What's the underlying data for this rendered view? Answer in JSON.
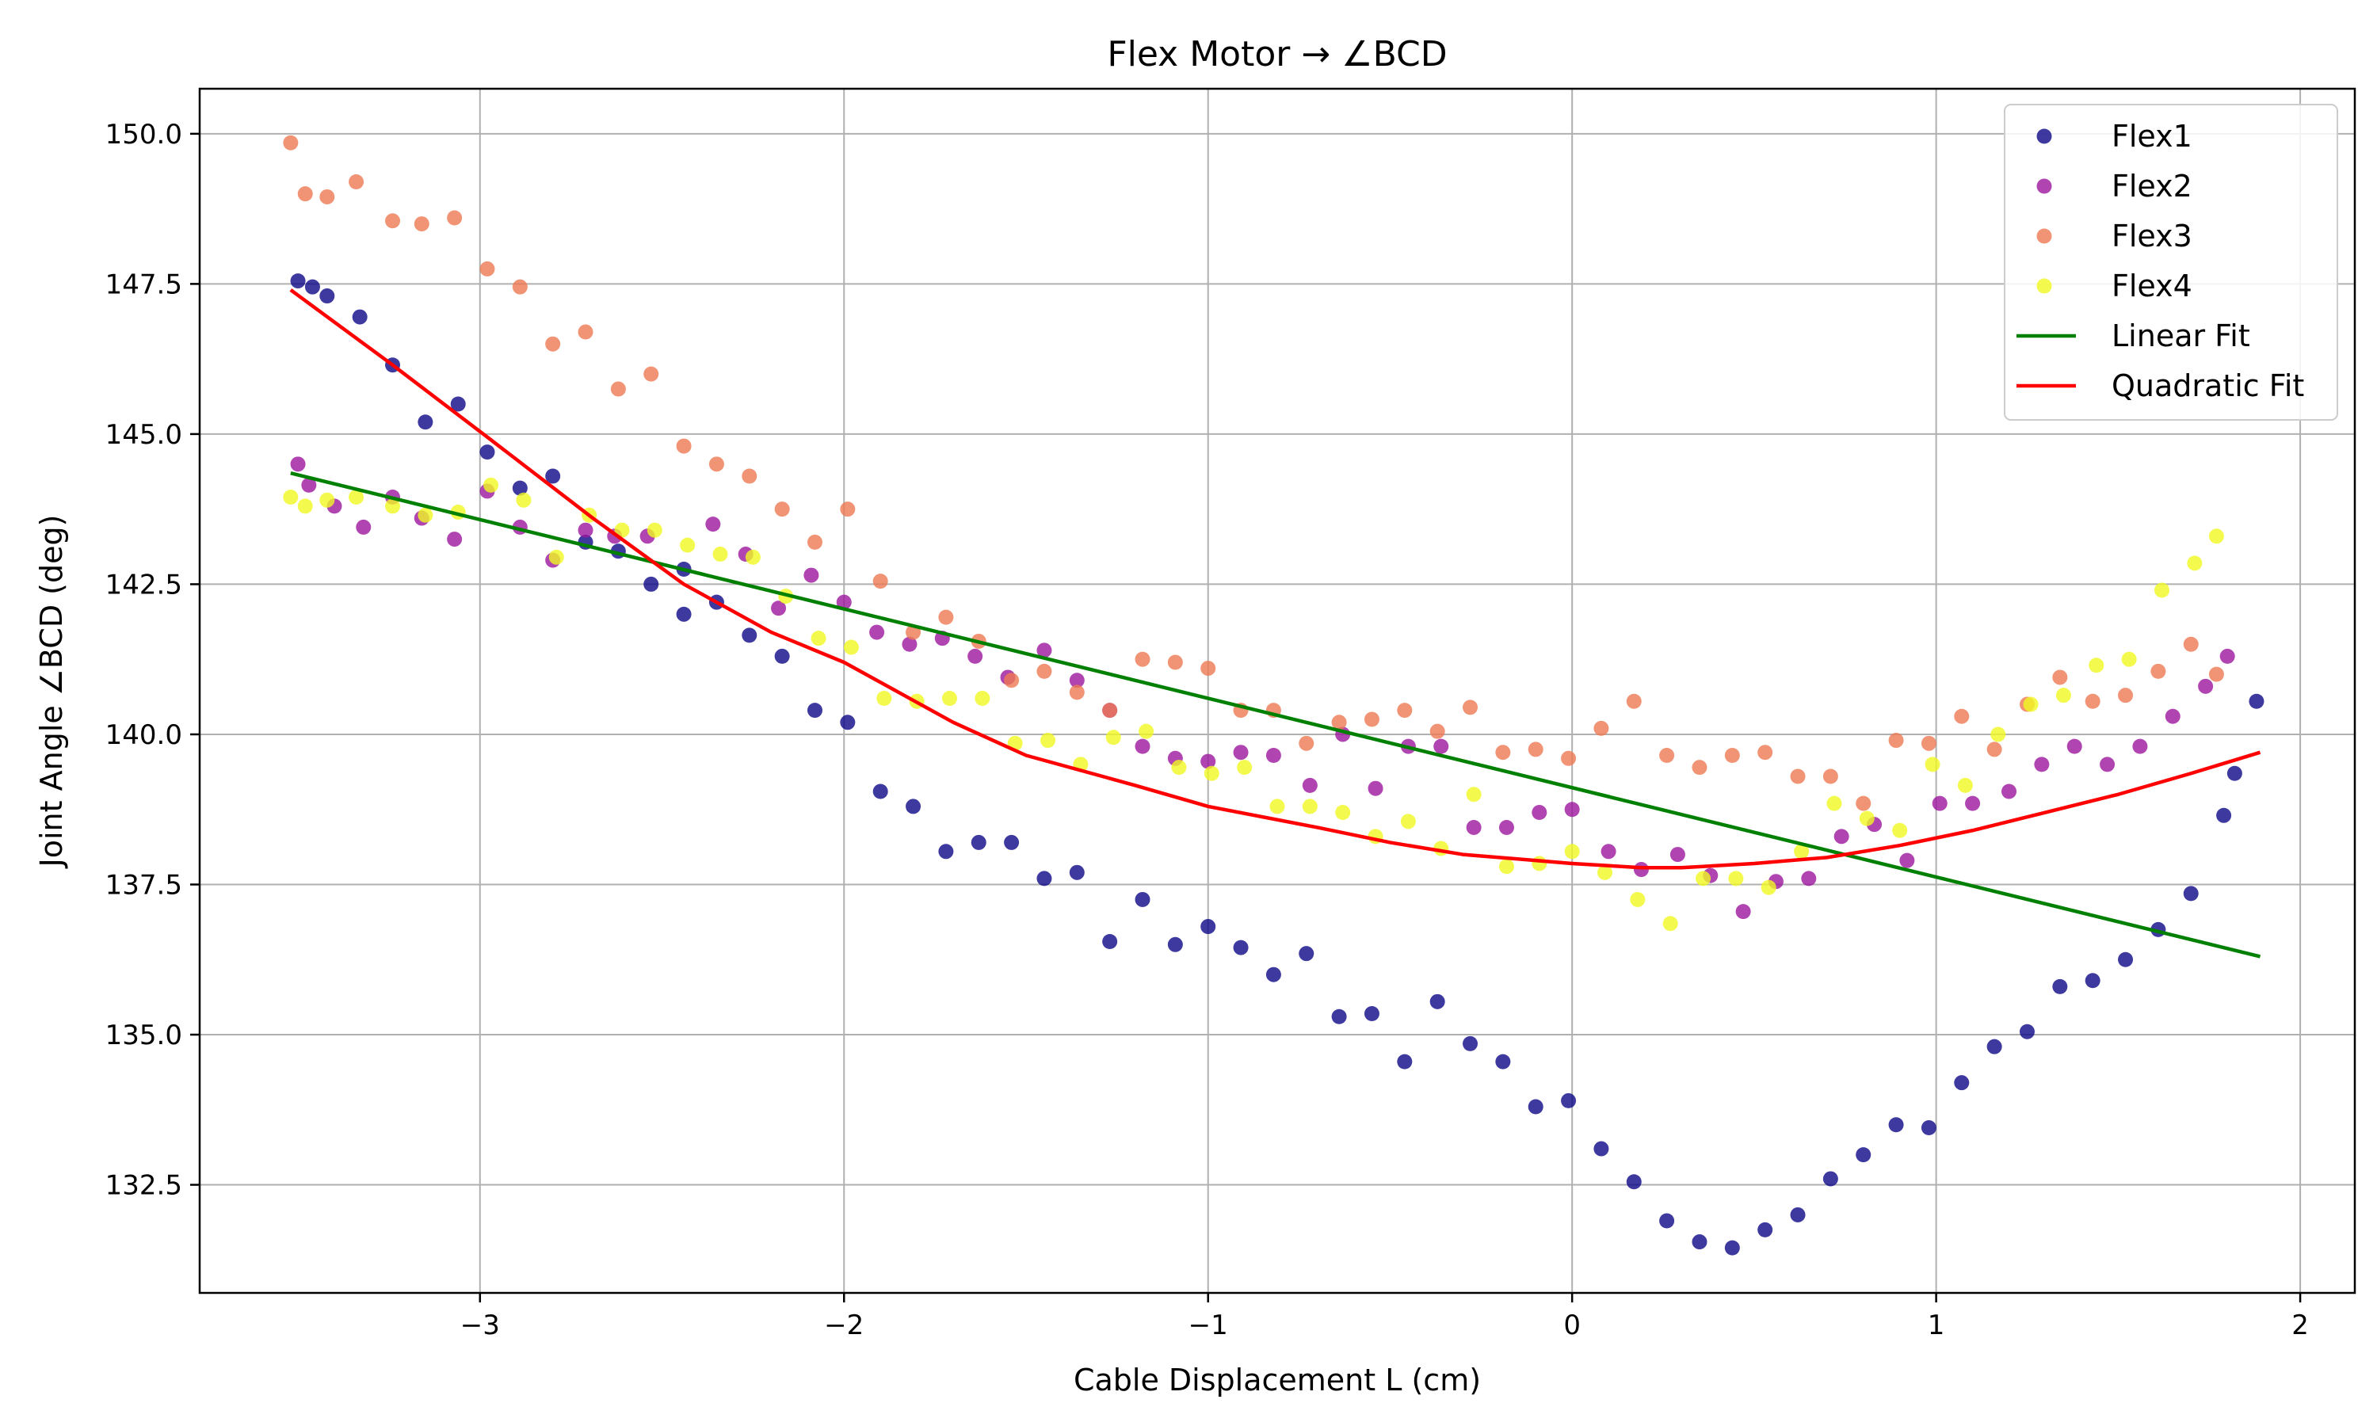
{
  "chart_data": {
    "type": "scatter",
    "title": "Flex Motor → ∠BCD",
    "xlabel": "Cable Displacement L (cm)",
    "ylabel": "Joint Angle ∠BCD (deg)",
    "xlim": [
      -3.77,
      2.15
    ],
    "ylim": [
      130.7,
      150.75
    ],
    "xticks": [
      -3,
      -2,
      -1,
      0,
      1,
      2
    ],
    "xtick_labels": [
      "−3",
      "−2",
      "−1",
      "0",
      "1",
      "2"
    ],
    "yticks": [
      132.5,
      135.0,
      137.5,
      140.0,
      142.5,
      145.0,
      147.5,
      150.0
    ],
    "ytick_labels": [
      "132.5",
      "135.0",
      "137.5",
      "140.0",
      "142.5",
      "145.0",
      "147.5",
      "150.0"
    ],
    "grid": true,
    "legend_position": "top-right",
    "series": [
      {
        "name": "Flex1",
        "kind": "scatter",
        "color": "#0d0887",
        "points": [
          [
            -3.5,
            147.55
          ],
          [
            -3.46,
            147.45
          ],
          [
            -3.42,
            147.3
          ],
          [
            -3.33,
            146.95
          ],
          [
            -3.24,
            146.15
          ],
          [
            -3.15,
            145.2
          ],
          [
            -3.06,
            145.5
          ],
          [
            -2.98,
            144.7
          ],
          [
            -2.89,
            144.1
          ],
          [
            -2.8,
            144.3
          ],
          [
            -2.71,
            143.2
          ],
          [
            -2.62,
            143.05
          ],
          [
            -2.53,
            142.5
          ],
          [
            -2.44,
            142.75
          ],
          [
            -2.44,
            142.0
          ],
          [
            -2.35,
            142.2
          ],
          [
            -2.26,
            141.65
          ],
          [
            -2.17,
            141.3
          ],
          [
            -2.08,
            140.4
          ],
          [
            -1.99,
            140.2
          ],
          [
            -1.9,
            139.05
          ],
          [
            -1.81,
            138.8
          ],
          [
            -1.72,
            138.05
          ],
          [
            -1.63,
            138.2
          ],
          [
            -1.54,
            138.2
          ],
          [
            -1.45,
            137.6
          ],
          [
            -1.36,
            137.7
          ],
          [
            -1.27,
            136.55
          ],
          [
            -1.18,
            137.25
          ],
          [
            -1.09,
            136.5
          ],
          [
            -1.0,
            136.8
          ],
          [
            -0.91,
            136.45
          ],
          [
            -0.82,
            136.0
          ],
          [
            -0.73,
            136.35
          ],
          [
            -0.64,
            135.3
          ],
          [
            -0.55,
            135.35
          ],
          [
            -0.46,
            134.55
          ],
          [
            -0.37,
            135.55
          ],
          [
            -0.28,
            134.85
          ],
          [
            -0.19,
            134.55
          ],
          [
            -0.1,
            133.8
          ],
          [
            -0.01,
            133.9
          ],
          [
            0.08,
            133.1
          ],
          [
            0.17,
            132.55
          ],
          [
            0.26,
            131.9
          ],
          [
            0.35,
            131.55
          ],
          [
            0.44,
            131.45
          ],
          [
            0.53,
            131.75
          ],
          [
            0.62,
            132.0
          ],
          [
            0.71,
            132.6
          ],
          [
            0.8,
            133.0
          ],
          [
            0.89,
            133.5
          ],
          [
            0.98,
            133.45
          ],
          [
            1.07,
            134.2
          ],
          [
            1.16,
            134.8
          ],
          [
            1.25,
            135.05
          ],
          [
            1.34,
            135.8
          ],
          [
            1.43,
            135.9
          ],
          [
            1.52,
            136.25
          ],
          [
            1.61,
            136.75
          ],
          [
            1.7,
            137.35
          ],
          [
            1.79,
            138.65
          ],
          [
            1.82,
            139.35
          ],
          [
            1.88,
            140.55
          ]
        ]
      },
      {
        "name": "Flex2",
        "kind": "scatter",
        "color": "#9c179e",
        "points": [
          [
            -3.5,
            144.5
          ],
          [
            -3.47,
            144.15
          ],
          [
            -3.4,
            143.8
          ],
          [
            -3.32,
            143.45
          ],
          [
            -3.24,
            143.95
          ],
          [
            -3.16,
            143.6
          ],
          [
            -3.07,
            143.25
          ],
          [
            -2.98,
            144.05
          ],
          [
            -2.89,
            143.45
          ],
          [
            -2.8,
            142.9
          ],
          [
            -2.71,
            143.4
          ],
          [
            -2.63,
            143.3
          ],
          [
            -2.54,
            143.3
          ],
          [
            -2.36,
            143.5
          ],
          [
            -2.27,
            143.0
          ],
          [
            -2.18,
            142.1
          ],
          [
            -2.09,
            142.65
          ],
          [
            -2.0,
            142.2
          ],
          [
            -1.91,
            141.7
          ],
          [
            -1.82,
            141.5
          ],
          [
            -1.73,
            141.6
          ],
          [
            -1.64,
            141.3
          ],
          [
            -1.55,
            140.95
          ],
          [
            -1.45,
            141.4
          ],
          [
            -1.36,
            140.9
          ],
          [
            -1.27,
            140.4
          ],
          [
            -1.18,
            139.8
          ],
          [
            -1.09,
            139.6
          ],
          [
            -1.0,
            139.55
          ],
          [
            -0.91,
            139.7
          ],
          [
            -0.82,
            139.65
          ],
          [
            -0.72,
            139.15
          ],
          [
            -0.63,
            140.0
          ],
          [
            -0.54,
            139.1
          ],
          [
            -0.45,
            139.8
          ],
          [
            -0.36,
            139.8
          ],
          [
            -0.27,
            138.45
          ],
          [
            -0.18,
            138.45
          ],
          [
            -0.09,
            138.7
          ],
          [
            0.0,
            138.75
          ],
          [
            0.1,
            138.05
          ],
          [
            0.19,
            137.75
          ],
          [
            0.29,
            138.0
          ],
          [
            0.38,
            137.65
          ],
          [
            0.47,
            137.05
          ],
          [
            0.56,
            137.55
          ],
          [
            0.65,
            137.6
          ],
          [
            0.74,
            138.3
          ],
          [
            0.83,
            138.5
          ],
          [
            0.92,
            137.9
          ],
          [
            1.01,
            138.85
          ],
          [
            1.1,
            138.85
          ],
          [
            1.2,
            139.05
          ],
          [
            1.29,
            139.5
          ],
          [
            1.38,
            139.8
          ],
          [
            1.47,
            139.5
          ],
          [
            1.56,
            139.8
          ],
          [
            1.65,
            140.3
          ],
          [
            1.74,
            140.8
          ],
          [
            1.8,
            141.3
          ]
        ]
      },
      {
        "name": "Flex3",
        "kind": "scatter",
        "color": "#ed7953",
        "points": [
          [
            -3.52,
            149.85
          ],
          [
            -3.48,
            149.0
          ],
          [
            -3.42,
            148.95
          ],
          [
            -3.34,
            149.2
          ],
          [
            -3.24,
            148.55
          ],
          [
            -3.16,
            148.5
          ],
          [
            -3.07,
            148.6
          ],
          [
            -2.98,
            147.75
          ],
          [
            -2.89,
            147.45
          ],
          [
            -2.8,
            146.5
          ],
          [
            -2.71,
            146.7
          ],
          [
            -2.62,
            145.75
          ],
          [
            -2.53,
            146.0
          ],
          [
            -2.44,
            144.8
          ],
          [
            -2.35,
            144.5
          ],
          [
            -2.26,
            144.3
          ],
          [
            -2.17,
            143.75
          ],
          [
            -2.08,
            143.2
          ],
          [
            -1.99,
            143.75
          ],
          [
            -1.9,
            142.55
          ],
          [
            -1.81,
            141.7
          ],
          [
            -1.72,
            141.95
          ],
          [
            -1.63,
            141.55
          ],
          [
            -1.54,
            140.9
          ],
          [
            -1.45,
            141.05
          ],
          [
            -1.36,
            140.7
          ],
          [
            -1.27,
            140.4
          ],
          [
            -1.18,
            141.25
          ],
          [
            -1.09,
            141.2
          ],
          [
            -1.0,
            141.1
          ],
          [
            -0.91,
            140.4
          ],
          [
            -0.82,
            140.4
          ],
          [
            -0.73,
            139.85
          ],
          [
            -0.64,
            140.2
          ],
          [
            -0.55,
            140.25
          ],
          [
            -0.46,
            140.4
          ],
          [
            -0.37,
            140.05
          ],
          [
            -0.28,
            140.45
          ],
          [
            -0.19,
            139.7
          ],
          [
            -0.1,
            139.75
          ],
          [
            -0.01,
            139.6
          ],
          [
            0.08,
            140.1
          ],
          [
            0.17,
            140.55
          ],
          [
            0.26,
            139.65
          ],
          [
            0.35,
            139.45
          ],
          [
            0.44,
            139.65
          ],
          [
            0.53,
            139.7
          ],
          [
            0.62,
            139.3
          ],
          [
            0.71,
            139.3
          ],
          [
            0.8,
            138.85
          ],
          [
            0.89,
            139.9
          ],
          [
            0.98,
            139.85
          ],
          [
            1.07,
            140.3
          ],
          [
            1.16,
            139.75
          ],
          [
            1.25,
            140.5
          ],
          [
            1.34,
            140.95
          ],
          [
            1.43,
            140.55
          ],
          [
            1.52,
            140.65
          ],
          [
            1.61,
            141.05
          ],
          [
            1.7,
            141.5
          ],
          [
            1.77,
            141.0
          ]
        ]
      },
      {
        "name": "Flex4",
        "kind": "scatter",
        "color": "#f0f921",
        "points": [
          [
            -3.52,
            143.95
          ],
          [
            -3.48,
            143.8
          ],
          [
            -3.42,
            143.9
          ],
          [
            -3.34,
            143.95
          ],
          [
            -3.24,
            143.8
          ],
          [
            -3.15,
            143.65
          ],
          [
            -3.06,
            143.7
          ],
          [
            -2.97,
            144.15
          ],
          [
            -2.88,
            143.9
          ],
          [
            -2.79,
            142.95
          ],
          [
            -2.7,
            143.65
          ],
          [
            -2.61,
            143.4
          ],
          [
            -2.52,
            143.4
          ],
          [
            -2.43,
            143.15
          ],
          [
            -2.34,
            143.0
          ],
          [
            -2.25,
            142.95
          ],
          [
            -2.16,
            142.3
          ],
          [
            -2.07,
            141.6
          ],
          [
            -1.98,
            141.45
          ],
          [
            -1.89,
            140.6
          ],
          [
            -1.8,
            140.55
          ],
          [
            -1.71,
            140.6
          ],
          [
            -1.62,
            140.6
          ],
          [
            -1.53,
            139.85
          ],
          [
            -1.44,
            139.9
          ],
          [
            -1.35,
            139.5
          ],
          [
            -1.26,
            139.95
          ],
          [
            -1.17,
            140.05
          ],
          [
            -1.08,
            139.45
          ],
          [
            -0.99,
            139.35
          ],
          [
            -0.9,
            139.45
          ],
          [
            -0.81,
            138.8
          ],
          [
            -0.72,
            138.8
          ],
          [
            -0.63,
            138.7
          ],
          [
            -0.54,
            138.3
          ],
          [
            -0.45,
            138.55
          ],
          [
            -0.36,
            138.1
          ],
          [
            -0.27,
            139.0
          ],
          [
            -0.18,
            137.8
          ],
          [
            -0.09,
            137.85
          ],
          [
            0.0,
            138.05
          ],
          [
            0.09,
            137.7
          ],
          [
            0.18,
            137.25
          ],
          [
            0.27,
            136.85
          ],
          [
            0.36,
            137.6
          ],
          [
            0.45,
            137.6
          ],
          [
            0.54,
            137.45
          ],
          [
            0.63,
            138.05
          ],
          [
            0.72,
            138.85
          ],
          [
            0.81,
            138.6
          ],
          [
            0.9,
            138.4
          ],
          [
            0.99,
            139.5
          ],
          [
            1.08,
            139.15
          ],
          [
            1.17,
            140.0
          ],
          [
            1.26,
            140.5
          ],
          [
            1.35,
            140.65
          ],
          [
            1.44,
            141.15
          ],
          [
            1.53,
            141.25
          ],
          [
            1.62,
            142.4
          ],
          [
            1.71,
            142.85
          ],
          [
            1.77,
            143.3
          ]
        ]
      },
      {
        "name": "Linear Fit",
        "kind": "line",
        "color": "#008000",
        "x": [
          -3.52,
          1.89
        ],
        "y": [
          144.35,
          136.3
        ]
      },
      {
        "name": "Quadratic Fit",
        "kind": "line",
        "color": "#ff0000",
        "x": [
          -3.52,
          -3.24,
          -2.98,
          -2.69,
          -2.44,
          -2.2,
          -2.0,
          -1.7,
          -1.5,
          -1.2,
          -1.0,
          -0.7,
          -0.5,
          -0.3,
          0.0,
          0.19,
          0.3,
          0.5,
          0.7,
          0.9,
          1.1,
          1.3,
          1.5,
          1.7,
          1.89
        ],
        "y": [
          147.4,
          146.15,
          144.95,
          143.6,
          142.5,
          141.7,
          141.2,
          140.2,
          139.65,
          139.15,
          138.8,
          138.45,
          138.2,
          138.0,
          137.85,
          137.78,
          137.78,
          137.85,
          137.95,
          138.15,
          138.4,
          138.7,
          139.0,
          139.35,
          139.7
        ]
      }
    ]
  }
}
